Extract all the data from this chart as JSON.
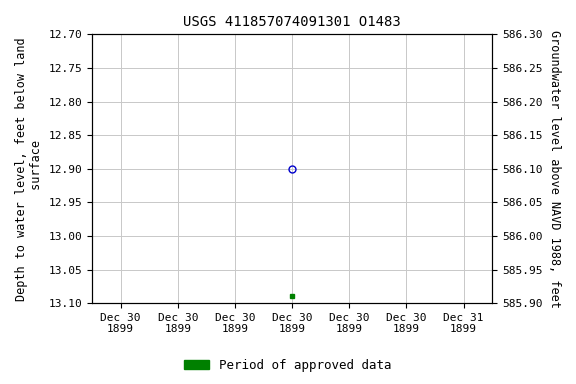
{
  "title": "USGS 411857074091301 O1483",
  "left_ylabel": "Depth to water level, feet below land\n surface",
  "right_ylabel": "Groundwater level above NAVD 1988, feet",
  "ylim_left": [
    12.7,
    13.1
  ],
  "ylim_right": [
    586.3,
    585.9
  ],
  "yticks_left": [
    12.7,
    12.75,
    12.8,
    12.85,
    12.9,
    12.95,
    13.0,
    13.05,
    13.1
  ],
  "yticks_right": [
    586.3,
    586.25,
    586.2,
    586.15,
    586.1,
    586.05,
    586.0,
    585.95,
    585.9
  ],
  "x_data_circle": 3.5,
  "y_data_circle": 12.9,
  "x_data_square": 3.5,
  "y_data_square": 13.09,
  "circle_color": "#0000cc",
  "square_color": "#008000",
  "background_color": "#ffffff",
  "grid_color": "#c8c8c8",
  "title_fontsize": 10,
  "axis_label_fontsize": 8.5,
  "tick_fontsize": 8,
  "xlim": [
    0,
    7
  ],
  "xtick_positions": [
    0.5,
    1.5,
    2.5,
    3.5,
    4.5,
    5.5,
    6.5
  ],
  "xtick_labels": [
    "Dec 30\n1899",
    "Dec 30\n1899",
    "Dec 30\n1899",
    "Dec 30\n1899",
    "Dec 30\n1899",
    "Dec 30\n1899",
    "Dec 31\n1899"
  ],
  "legend_label": "Period of approved data",
  "legend_color": "#008000"
}
